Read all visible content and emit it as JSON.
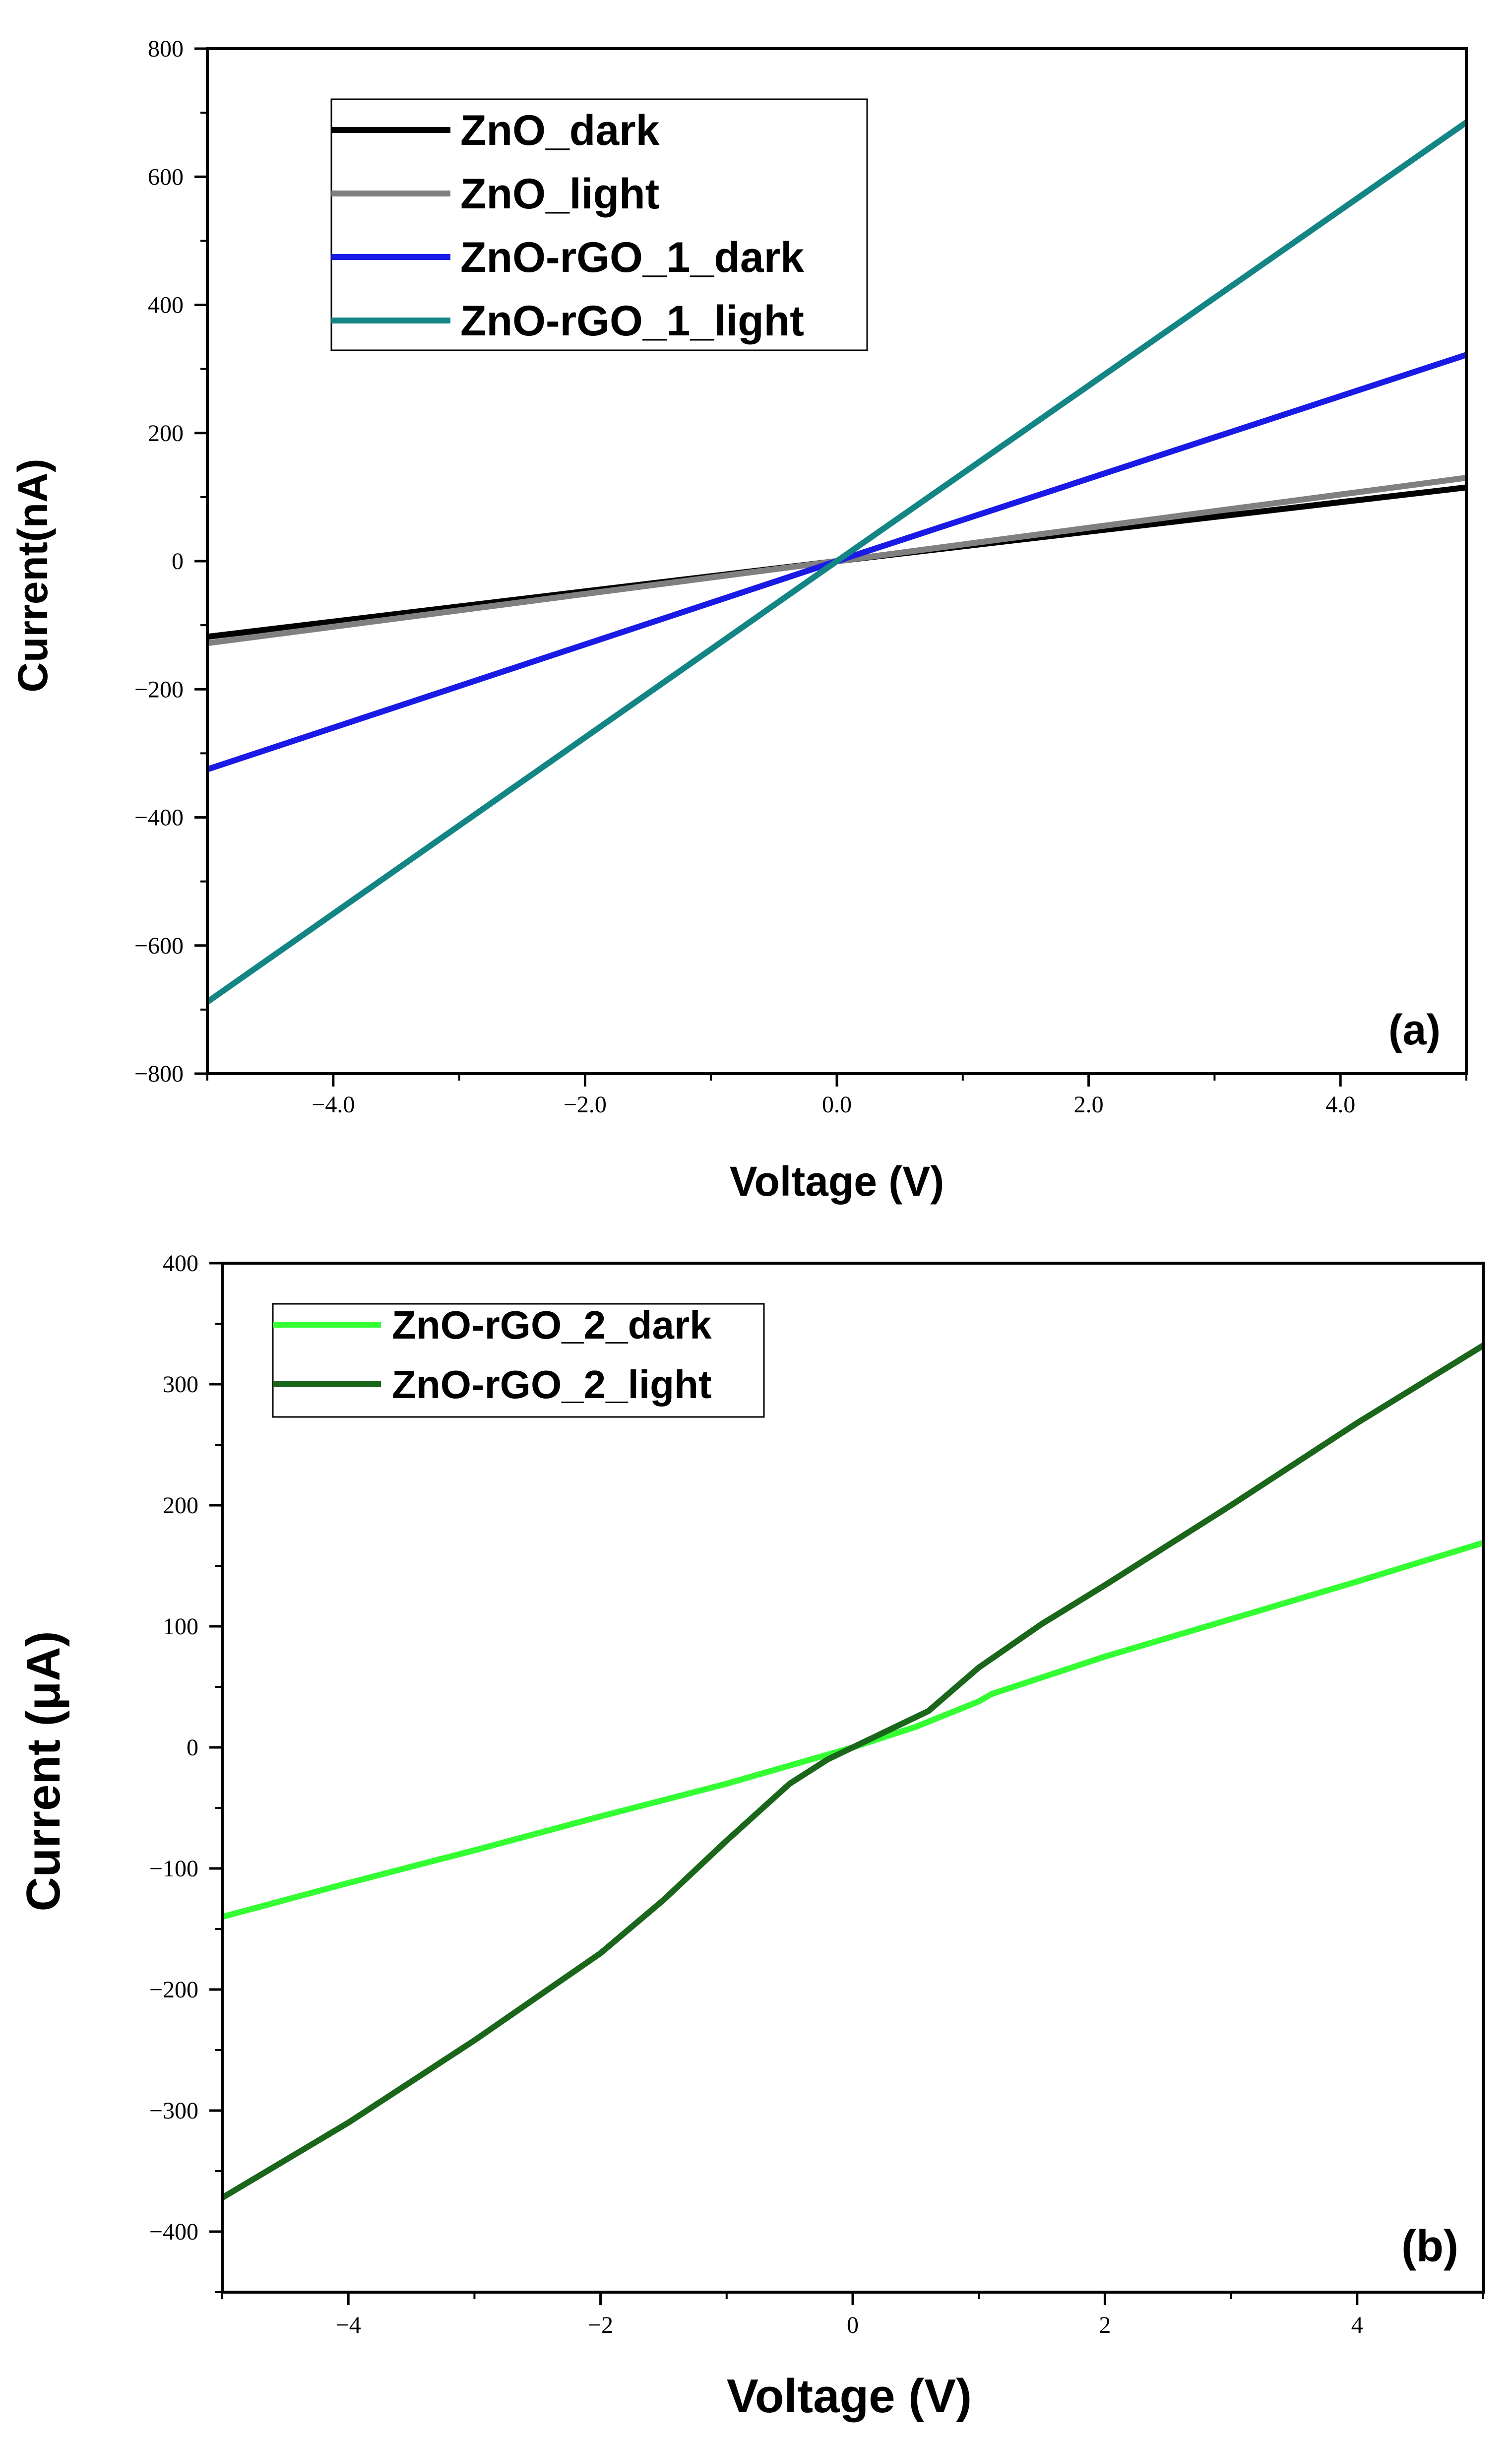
{
  "chart_data": [
    {
      "type": "line",
      "panel_label": "(a)",
      "xlabel": "Voltage (V)",
      "ylabel": "Current(nA)",
      "xlim": [
        -5,
        5
      ],
      "ylim": [
        -800,
        800
      ],
      "xticks": [
        -4,
        -2,
        0,
        2,
        4
      ],
      "xtick_labels": [
        "−4.0",
        "−2.0",
        "0.0",
        "2.0",
        "4.0"
      ],
      "yticks": [
        -800,
        -600,
        -400,
        -200,
        0,
        200,
        400,
        600,
        800
      ],
      "ytick_labels": [
        "−800",
        "−600",
        "−400",
        "−200",
        "0",
        "200",
        "400",
        "600",
        "800"
      ],
      "legend_position": "top-left",
      "grid": false,
      "series": [
        {
          "name": "ZnO_dark",
          "color": "#000000",
          "x": [
            -5,
            0,
            5
          ],
          "y": [
            -118,
            0,
            115
          ]
        },
        {
          "name": "ZnO_light",
          "color": "#808080",
          "x": [
            -5,
            0,
            5
          ],
          "y": [
            -128,
            0,
            130
          ]
        },
        {
          "name": "ZnO-rGO_1_dark",
          "color": "#1a1ae6",
          "x": [
            -5,
            0,
            5
          ],
          "y": [
            -325,
            0,
            322
          ]
        },
        {
          "name": "ZnO-rGO_1_light",
          "color": "#138585",
          "x": [
            -5,
            0,
            5
          ],
          "y": [
            -688,
            0,
            685
          ]
        }
      ]
    },
    {
      "type": "line",
      "panel_label": "(b)",
      "xlabel": "Voltage (V)",
      "ylabel": "Current (μA)",
      "xlim": [
        -5,
        5
      ],
      "ylim": [
        -450,
        400
      ],
      "xticks": [
        -4,
        -2,
        0,
        2,
        4
      ],
      "xtick_labels": [
        "−4",
        "−2",
        "0",
        "2",
        "4"
      ],
      "yticks": [
        -400,
        -300,
        -200,
        -100,
        0,
        100,
        200,
        300,
        400
      ],
      "ytick_labels": [
        "−400",
        "−300",
        "−200",
        "−100",
        "0",
        "100",
        "200",
        "300",
        "400"
      ],
      "legend_position": "top-left",
      "grid": false,
      "series": [
        {
          "name": "ZnO-rGO_2_dark",
          "color": "#33ff33",
          "x": [
            -5,
            -4,
            -3,
            -2,
            -1,
            0,
            0.5,
            1,
            1.1,
            2,
            3,
            4,
            5
          ],
          "y": [
            -140,
            -112,
            -85,
            -57,
            -30,
            0,
            17,
            38,
            44,
            75,
            106,
            137,
            169
          ]
        },
        {
          "name": "ZnO-rGO_2_light",
          "color": "#1a661a",
          "x": [
            -5,
            -4,
            -3,
            -2,
            -1.5,
            -1,
            -0.5,
            -0.2,
            0,
            0.2,
            0.6,
            1,
            1.5,
            2,
            3,
            4,
            5
          ],
          "y": [
            -372,
            -310,
            -242,
            -170,
            -126,
            -77,
            -30,
            -10,
            0,
            10,
            30,
            66,
            102,
            134,
            200,
            268,
            332
          ]
        }
      ]
    }
  ]
}
